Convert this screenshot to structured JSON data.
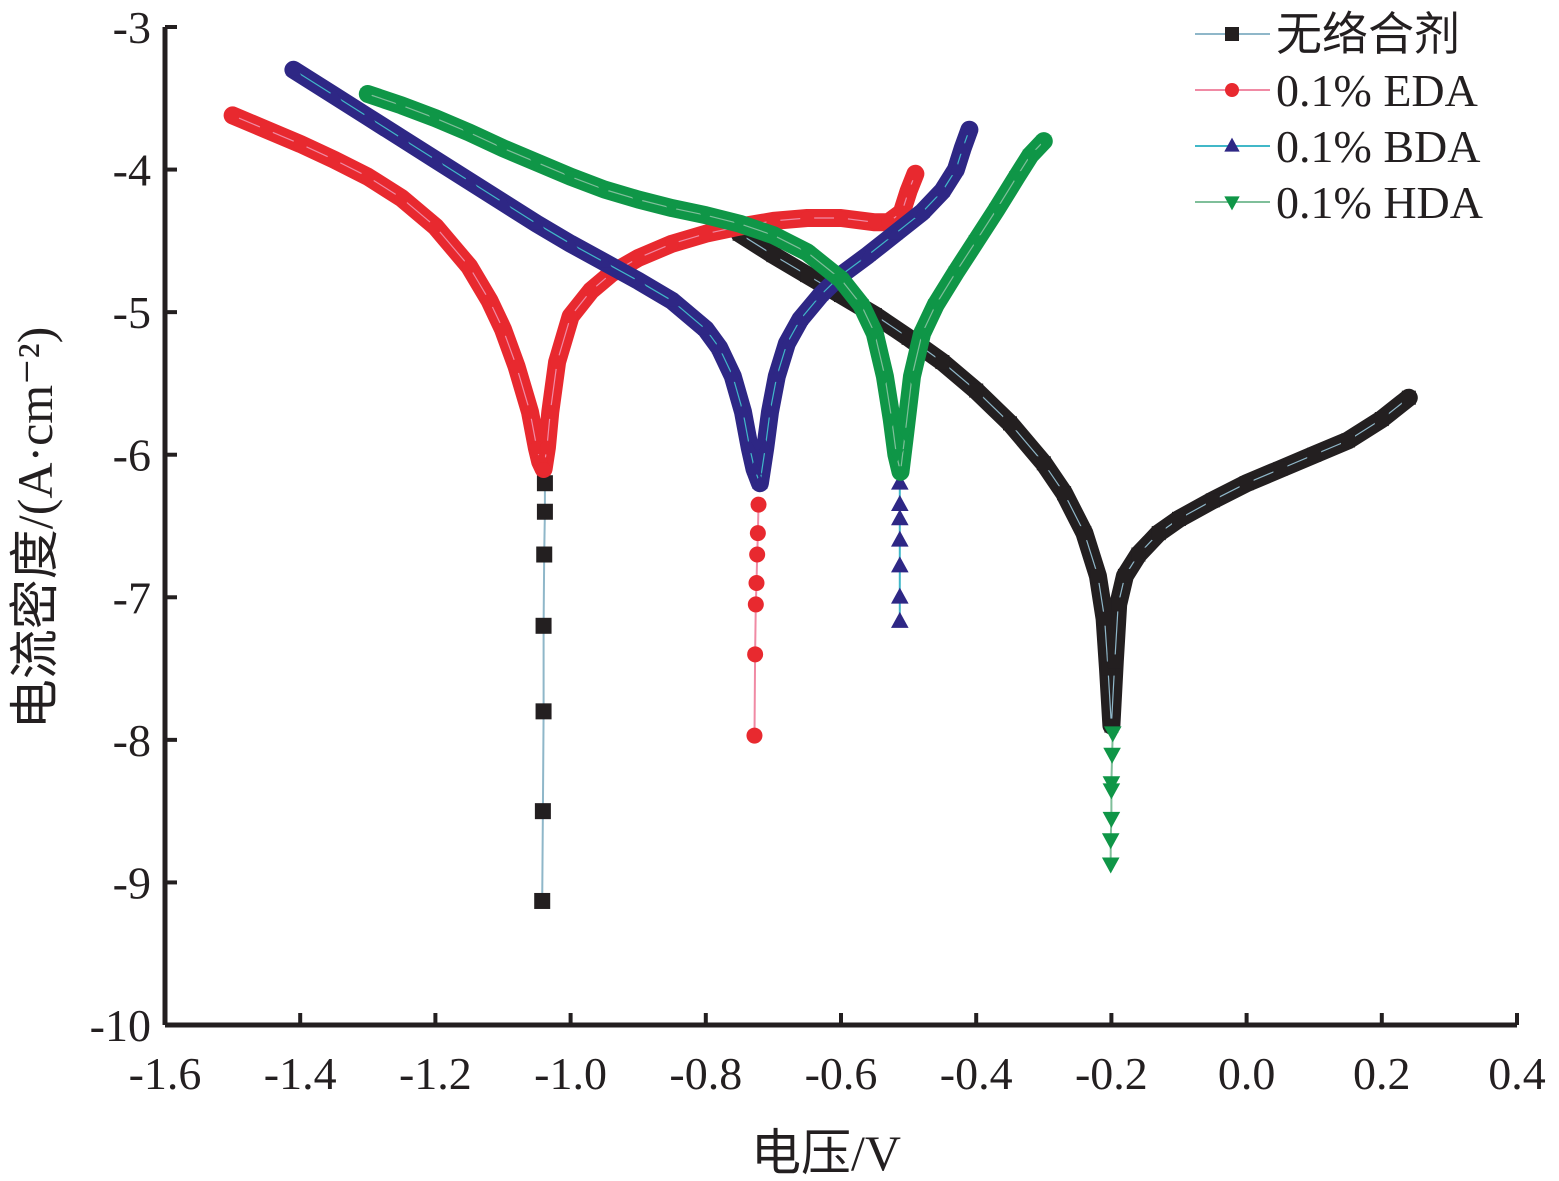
{
  "chart_data": {
    "type": "line",
    "title": "",
    "xlabel": "电压/V",
    "ylabel": "电流密度/(A·cm⁻²)",
    "xlim": [
      -1.6,
      0.4
    ],
    "ylim": [
      -10,
      -3
    ],
    "x_ticks": [
      "-1.6",
      "-1.4",
      "-1.2",
      "-1.0",
      "-0.8",
      "-0.6",
      "-0.4",
      "-0.2",
      "0.0",
      "0.2",
      "0.4"
    ],
    "y_ticks": [
      "-3",
      "-4",
      "-5",
      "-6",
      "-7",
      "-8",
      "-9",
      "-10"
    ],
    "legend_position": "top-right",
    "series": [
      {
        "name": "无络合剂",
        "color": "#231f20",
        "line_color": "#8fb7c9",
        "marker": "square",
        "x": [
          -0.75,
          -0.7,
          -0.65,
          -0.6,
          -0.55,
          -0.5,
          -0.45,
          -0.4,
          -0.35,
          -0.3,
          -0.27,
          -0.24,
          -0.22,
          -0.21,
          -0.205,
          -0.2,
          -0.195,
          -0.19,
          -0.18,
          -0.16,
          -0.13,
          -0.1,
          -0.05,
          0.0,
          0.05,
          0.1,
          0.15,
          0.2,
          0.24
        ],
        "y": [
          -4.45,
          -4.6,
          -4.74,
          -4.88,
          -5.02,
          -5.18,
          -5.35,
          -5.55,
          -5.78,
          -6.06,
          -6.27,
          -6.55,
          -6.85,
          -7.15,
          -7.5,
          -7.9,
          -7.45,
          -7.05,
          -6.85,
          -6.7,
          -6.55,
          -6.45,
          -6.32,
          -6.2,
          -6.1,
          -6.0,
          -5.9,
          -5.75,
          -5.6
        ]
      },
      {
        "name": "0.1% EDA",
        "color": "#e8292f",
        "line_color": "#f08aa4",
        "marker": "circle",
        "x": [
          -1.5,
          -1.45,
          -1.4,
          -1.35,
          -1.3,
          -1.25,
          -1.2,
          -1.15,
          -1.12,
          -1.1,
          -1.08,
          -1.06,
          -1.05,
          -1.045,
          -1.04,
          -1.035,
          -1.03,
          -1.02,
          -1.0,
          -0.97,
          -0.94,
          -0.9,
          -0.85,
          -0.8,
          -0.75,
          -0.7,
          -0.65,
          -0.6,
          -0.55,
          -0.53,
          -0.51,
          -0.5,
          -0.49
        ],
        "y": [
          -3.62,
          -3.72,
          -3.82,
          -3.93,
          -4.05,
          -4.2,
          -4.4,
          -4.68,
          -4.92,
          -5.12,
          -5.38,
          -5.7,
          -5.95,
          -6.05,
          -6.1,
          -5.95,
          -5.7,
          -5.35,
          -5.03,
          -4.85,
          -4.73,
          -4.62,
          -4.52,
          -4.45,
          -4.4,
          -4.36,
          -4.34,
          -4.34,
          -4.37,
          -4.37,
          -4.3,
          -4.15,
          -4.03
        ]
      },
      {
        "name": "0.1% BDA",
        "color": "#2e2785",
        "line_color": "#41b8c8",
        "marker": "triangle-up",
        "x": [
          -1.41,
          -1.35,
          -1.3,
          -1.25,
          -1.2,
          -1.15,
          -1.1,
          -1.05,
          -1.0,
          -0.95,
          -0.9,
          -0.85,
          -0.8,
          -0.78,
          -0.76,
          -0.745,
          -0.735,
          -0.728,
          -0.72,
          -0.712,
          -0.705,
          -0.695,
          -0.68,
          -0.66,
          -0.63,
          -0.6,
          -0.56,
          -0.52,
          -0.48,
          -0.45,
          -0.43,
          -0.42,
          -0.41
        ],
        "y": [
          -3.3,
          -3.48,
          -3.63,
          -3.78,
          -3.93,
          -4.08,
          -4.23,
          -4.38,
          -4.52,
          -4.65,
          -4.78,
          -4.92,
          -5.12,
          -5.25,
          -5.45,
          -5.7,
          -5.95,
          -6.1,
          -6.2,
          -5.95,
          -5.7,
          -5.45,
          -5.22,
          -5.05,
          -4.88,
          -4.74,
          -4.6,
          -4.45,
          -4.3,
          -4.15,
          -4.0,
          -3.85,
          -3.72
        ]
      },
      {
        "name": "0.1% HDA",
        "color": "#0f9647",
        "line_color": "#7fbf9a",
        "marker": "triangle-down",
        "x": [
          -1.3,
          -1.25,
          -1.2,
          -1.15,
          -1.1,
          -1.05,
          -1.0,
          -0.95,
          -0.9,
          -0.85,
          -0.8,
          -0.75,
          -0.7,
          -0.65,
          -0.6,
          -0.57,
          -0.55,
          -0.535,
          -0.525,
          -0.518,
          -0.512,
          -0.505,
          -0.495,
          -0.48,
          -0.46,
          -0.43,
          -0.4,
          -0.37,
          -0.34,
          -0.32,
          -0.3
        ],
        "y": [
          -3.47,
          -3.55,
          -3.64,
          -3.74,
          -3.85,
          -3.95,
          -4.05,
          -4.14,
          -4.21,
          -4.27,
          -4.32,
          -4.38,
          -4.46,
          -4.58,
          -4.77,
          -4.95,
          -5.15,
          -5.45,
          -5.75,
          -6.0,
          -6.12,
          -5.85,
          -5.45,
          -5.15,
          -4.95,
          -4.72,
          -4.5,
          -4.28,
          -4.05,
          -3.9,
          -3.8
        ]
      }
    ],
    "tails": [
      {
        "x": [
          -1.038,
          -1.038,
          -1.039,
          -1.04,
          -1.04,
          -1.041,
          -1.042
        ],
        "y": [
          -6.2,
          -6.4,
          -6.7,
          -7.2,
          -7.8,
          -8.5,
          -9.13
        ]
      },
      {
        "x": [
          -0.722,
          -0.723,
          -0.724,
          -0.725,
          -0.726,
          -0.727,
          -0.728
        ],
        "y": [
          -6.35,
          -6.55,
          -6.7,
          -6.9,
          -7.05,
          -7.4,
          -7.97
        ]
      },
      {
        "x": [
          -0.513,
          -0.513,
          -0.513,
          -0.513,
          -0.513,
          -0.513,
          -0.513
        ],
        "y": [
          -6.2,
          -6.35,
          -6.45,
          -6.6,
          -6.78,
          -7.0,
          -7.17
        ]
      },
      {
        "x": [
          -0.198,
          -0.199,
          -0.2,
          -0.2,
          -0.2,
          -0.201,
          -0.201
        ],
        "y": [
          -7.95,
          -8.1,
          -8.3,
          -8.35,
          -8.55,
          -8.7,
          -8.87
        ]
      }
    ]
  }
}
